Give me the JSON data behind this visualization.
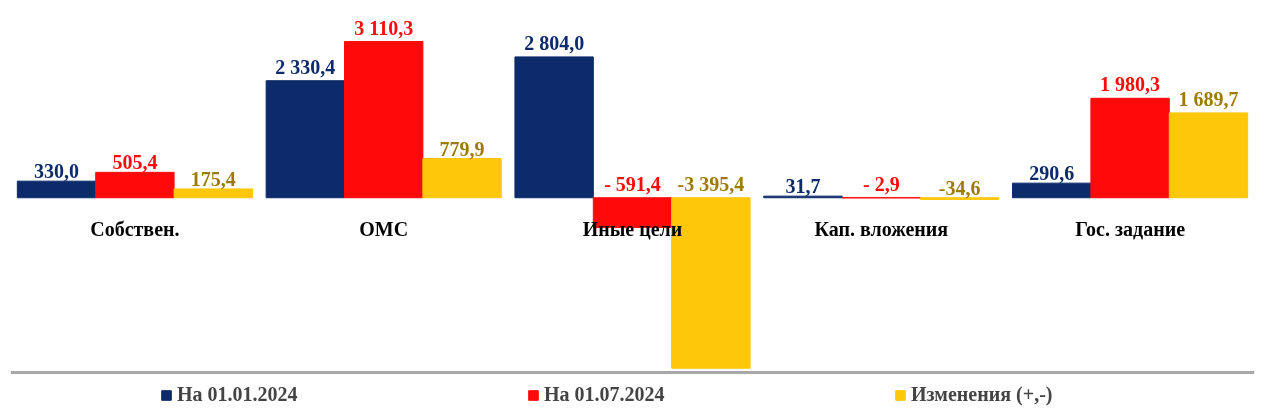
{
  "chart_data": {
    "type": "bar",
    "categories": [
      "Собствен.",
      "ОМС",
      "Иные цели",
      "Кап. вложения",
      "Гос. задание"
    ],
    "series": [
      {
        "name": "На 01.01.2024",
        "color": "#0d2a6b",
        "values": [
          330.0,
          2330.4,
          2804.0,
          31.7,
          290.6
        ],
        "value_labels": [
          "330,0",
          "2 330,4",
          "2 804,0",
          "31,7",
          "290,6"
        ]
      },
      {
        "name": "На 01.07.2024",
        "color": "#fe0a0a",
        "values": [
          505.4,
          3110.3,
          -591.4,
          -2.9,
          1980.3
        ],
        "value_labels": [
          "505,4",
          "3 110,3",
          "- 591,4",
          "- 2,9",
          "1 980,3"
        ]
      },
      {
        "name": "Изменения (+,-)",
        "color": "#ffc70a",
        "values": [
          175.4,
          779.9,
          -3395.4,
          -34.6,
          1689.7
        ],
        "value_labels": [
          "175,4",
          "779,9",
          "-3 395,4",
          "-34,6",
          "1 689,7"
        ]
      }
    ],
    "legend": "bottom"
  }
}
